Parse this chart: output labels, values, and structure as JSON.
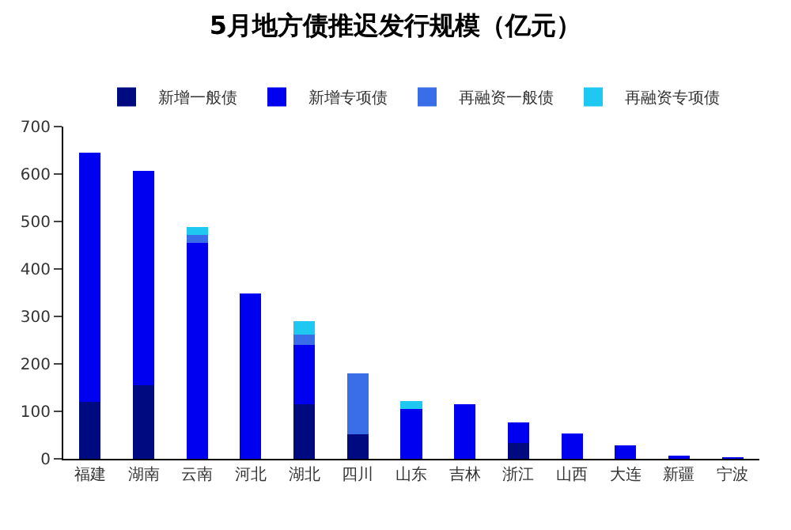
{
  "chart_data": {
    "type": "bar",
    "title": "5月地方债推迟发行规模（亿元）",
    "categories": [
      "福建",
      "湖南",
      "云南",
      "河北",
      "湖北",
      "四川",
      "山东",
      "吉林",
      "浙江",
      "山西",
      "大连",
      "新疆",
      "宁波"
    ],
    "stacked": true,
    "series": [
      {
        "name": "新增一般债",
        "color": "#000a80",
        "values": [
          120,
          155,
          0,
          0,
          115,
          52,
          0,
          0,
          33,
          0,
          0,
          0,
          0
        ]
      },
      {
        "name": "新增专项债",
        "color": "#0000f0",
        "values": [
          525,
          452,
          455,
          348,
          125,
          0,
          105,
          115,
          44,
          53,
          29,
          7,
          1
        ]
      },
      {
        "name": "再融资一般债",
        "color": "#3a6ee8",
        "values": [
          0,
          0,
          17,
          0,
          22,
          128,
          0,
          0,
          0,
          0,
          0,
          0,
          0
        ]
      },
      {
        "name": "再融资专项债",
        "color": "#1ec8f0",
        "values": [
          0,
          0,
          16,
          0,
          28,
          0,
          17,
          0,
          0,
          0,
          0,
          0,
          0
        ]
      }
    ],
    "ylim": [
      0,
      700
    ],
    "yticks": [
      0,
      100,
      200,
      300,
      400,
      500,
      600,
      700
    ],
    "legend": "top"
  }
}
